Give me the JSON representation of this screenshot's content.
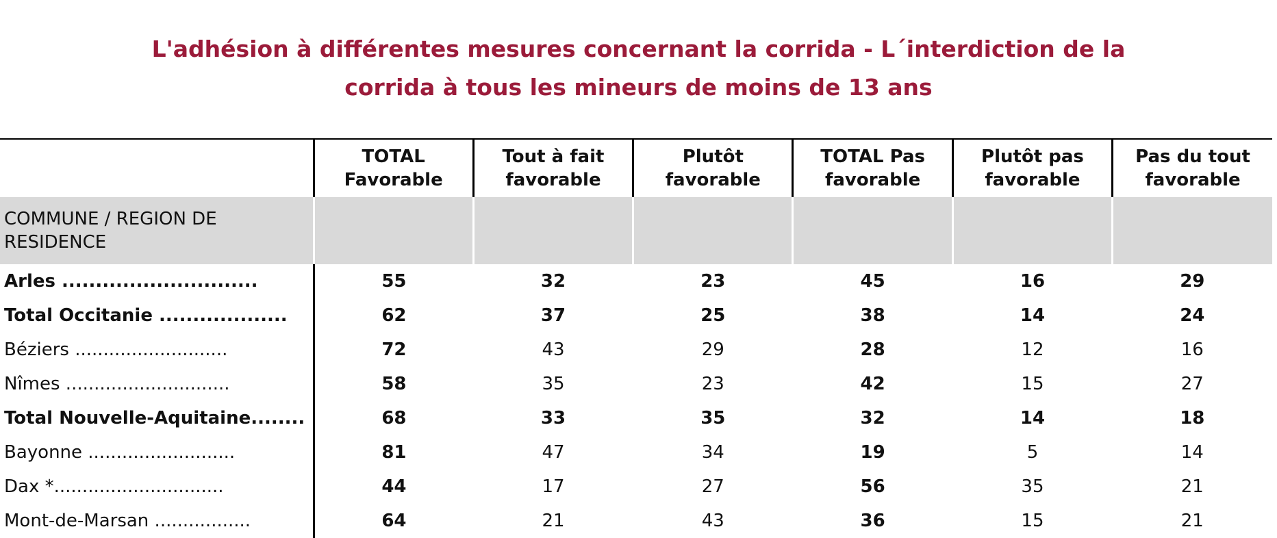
{
  "title": [
    "L'adhésion à différentes mesures concernant la corrida - L´interdiction de la",
    "corrida à tous les mineurs de moins de 13 ans"
  ],
  "table": {
    "columns": [
      "TOTAL\nFavorable",
      "Tout à fait\nfavorable",
      "Plutôt\nfavorable",
      "TOTAL Pas\nfavorable",
      "Plutôt pas\nfavorable",
      "Pas du tout\nfavorable"
    ],
    "section": "COMMUNE / REGION DE RESIDENCE",
    "bold_columns": [
      0,
      3
    ],
    "rows": [
      {
        "label": "Arles .............................",
        "bold": true,
        "values": [
          55,
          32,
          23,
          45,
          16,
          29
        ]
      },
      {
        "label": "Total Occitanie ...................",
        "bold": true,
        "values": [
          62,
          37,
          25,
          38,
          14,
          24
        ]
      },
      {
        "label": "Béziers ...........................",
        "bold": false,
        "values": [
          72,
          43,
          29,
          28,
          12,
          16
        ]
      },
      {
        "label": "Nîmes .............................",
        "bold": false,
        "values": [
          58,
          35,
          23,
          42,
          15,
          27
        ]
      },
      {
        "label": "Total Nouvelle-Aquitaine........",
        "bold": true,
        "values": [
          68,
          33,
          35,
          32,
          14,
          18
        ]
      },
      {
        "label": "Bayonne ..........................",
        "bold": false,
        "values": [
          81,
          47,
          34,
          19,
          5,
          14
        ]
      },
      {
        "label": "Dax *..............................",
        "bold": false,
        "values": [
          44,
          17,
          27,
          56,
          35,
          21
        ]
      },
      {
        "label": "Mont-de-Marsan .................",
        "bold": false,
        "values": [
          64,
          21,
          43,
          36,
          15,
          21
        ]
      }
    ]
  }
}
